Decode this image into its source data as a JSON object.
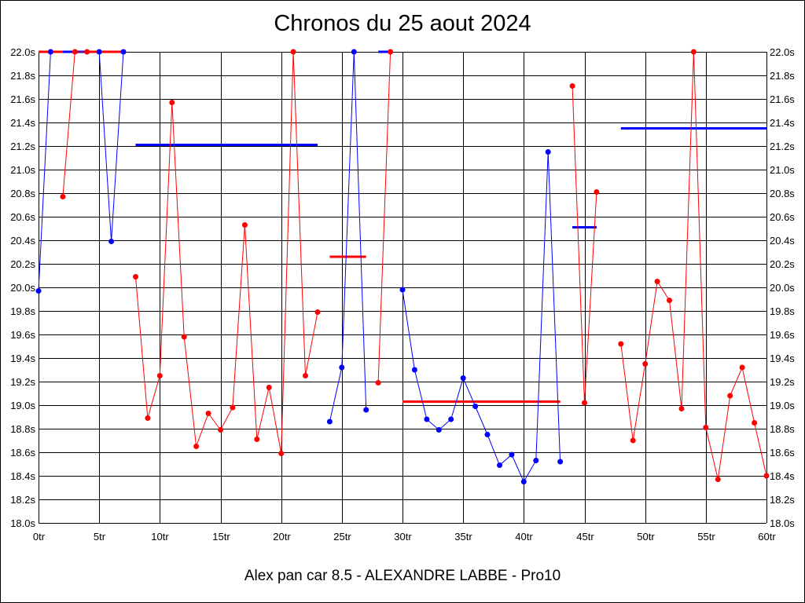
{
  "chart_data": {
    "type": "line",
    "title": "Chronos du 25 aout 2024",
    "subtitle": "Alex pan car 8.5 - ALEXANDRE LABBE - Pro10",
    "xlabel": "",
    "ylabel": "",
    "xlim": [
      0,
      60
    ],
    "ylim": [
      18.0,
      22.0
    ],
    "grid": true,
    "x_ticks": [
      0,
      5,
      10,
      15,
      20,
      25,
      30,
      35,
      40,
      45,
      50,
      55,
      60
    ],
    "x_tick_labels": [
      "0tr",
      "5tr",
      "10tr",
      "15tr",
      "20tr",
      "25tr",
      "30tr",
      "35tr",
      "40tr",
      "45tr",
      "50tr",
      "55tr",
      "60tr"
    ],
    "y_ticks": [
      18.0,
      18.2,
      18.4,
      18.6,
      18.8,
      19.0,
      19.2,
      19.4,
      19.6,
      19.8,
      20.0,
      20.2,
      20.4,
      20.6,
      20.8,
      21.0,
      21.2,
      21.4,
      21.6,
      21.8,
      22.0
    ],
    "y_tick_labels": [
      "18.0s",
      "18.2s",
      "18.4s",
      "18.6s",
      "18.8s",
      "19.0s",
      "19.2s",
      "19.4s",
      "19.6s",
      "19.8s",
      "20.0s",
      "20.2s",
      "20.4s",
      "20.6s",
      "20.8s",
      "21.0s",
      "21.2s",
      "21.4s",
      "21.6s",
      "21.8s",
      "22.0s"
    ],
    "colors": {
      "red": "#ff0000",
      "blue": "#0000ff",
      "grid": "#000000"
    },
    "series": [
      {
        "color": "#0000ff",
        "x": [
          0,
          1
        ],
        "y": [
          19.97,
          22.0
        ]
      },
      {
        "color": "#ff0000",
        "x": [
          2,
          3,
          4
        ],
        "y": [
          20.77,
          22.0,
          22.0
        ]
      },
      {
        "color": "#0000ff",
        "x": [
          5,
          6,
          7
        ],
        "y": [
          22.0,
          20.39,
          22.0
        ]
      },
      {
        "color": "#ff0000",
        "x": [
          8,
          9,
          10,
          11,
          12,
          13,
          14,
          15,
          16,
          17,
          18,
          19,
          20,
          21,
          22,
          23
        ],
        "y": [
          20.09,
          18.89,
          19.25,
          21.57,
          19.58,
          18.65,
          18.93,
          18.79,
          18.98,
          20.53,
          18.71,
          19.15,
          18.59,
          22.0,
          19.25,
          19.79
        ]
      },
      {
        "color": "#0000ff",
        "x": [
          24,
          25,
          26,
          27
        ],
        "y": [
          18.86,
          19.32,
          22.0,
          18.96
        ]
      },
      {
        "color": "#ff0000",
        "x": [
          28,
          29
        ],
        "y": [
          19.19,
          22.0
        ]
      },
      {
        "color": "#0000ff",
        "x": [
          30,
          31,
          32,
          33,
          34,
          35,
          36,
          37,
          38,
          39,
          40,
          41,
          42,
          43
        ],
        "y": [
          19.98,
          19.3,
          18.88,
          18.79,
          18.88,
          19.23,
          18.99,
          18.75,
          18.49,
          18.58,
          18.35,
          18.53,
          21.15,
          18.52
        ]
      },
      {
        "color": "#ff0000",
        "x": [
          44,
          45,
          46
        ],
        "y": [
          21.71,
          19.02,
          20.81
        ]
      },
      {
        "color": "#ff0000",
        "x": [
          48,
          49,
          50,
          51,
          52,
          53,
          54,
          55,
          56,
          57,
          58,
          59,
          60
        ],
        "y": [
          19.52,
          18.7,
          19.35,
          20.05,
          19.89,
          18.97,
          22.0,
          18.81,
          18.37,
          19.08,
          19.32,
          18.85,
          18.4
        ]
      }
    ],
    "averages": [
      {
        "color": "#ff0000",
        "x": [
          0,
          7
        ],
        "y": 22.0
      },
      {
        "color": "#0000ff",
        "x": [
          2,
          4
        ],
        "y": 22.0
      },
      {
        "color": "#0000ff",
        "x": [
          28,
          29
        ],
        "y": 22.0
      },
      {
        "color": "#0000ff",
        "x": [
          8,
          23
        ],
        "y": 21.21
      },
      {
        "color": "#ff0000",
        "x": [
          24,
          27
        ],
        "y": 20.26
      },
      {
        "color": "#ff0000",
        "x": [
          30,
          43
        ],
        "y": 19.03
      },
      {
        "color": "#0000ff",
        "x": [
          44,
          46
        ],
        "y": 20.51
      },
      {
        "color": "#0000ff",
        "x": [
          48,
          60
        ],
        "y": 21.35
      }
    ]
  }
}
